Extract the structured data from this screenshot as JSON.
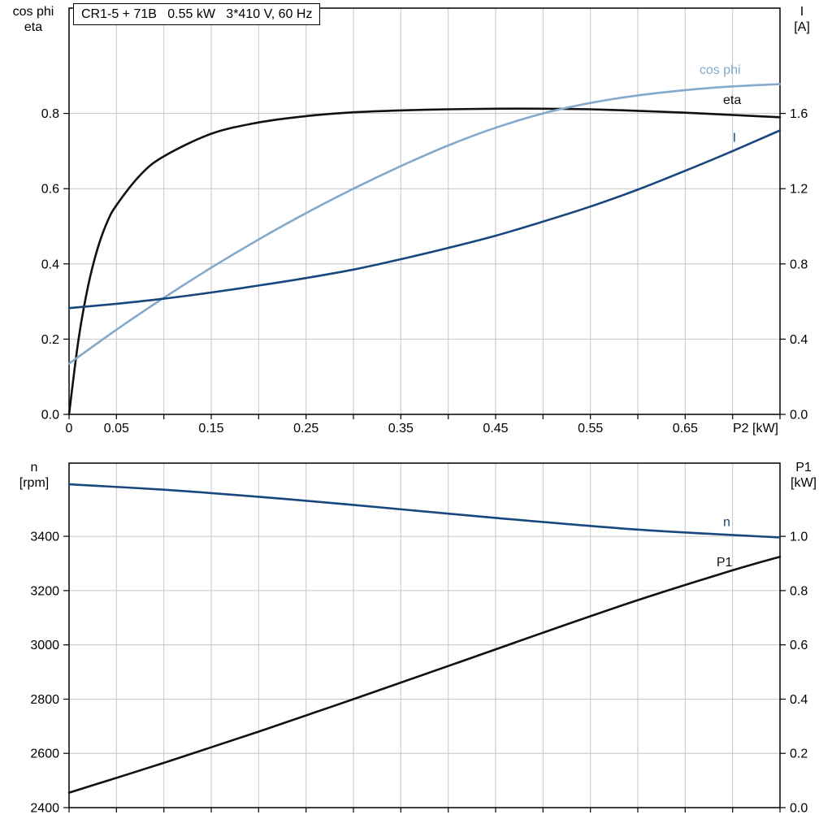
{
  "title_box": {
    "text": "CR1-5 + 71B   0.55 kW   3*410 V, 60 Hz"
  },
  "colors": {
    "black": "#111111",
    "dark_blue": "#17477e",
    "light_blue": "#83a9cc",
    "grid": "#c6c6c6",
    "axis": "#000000",
    "text": "#000000"
  },
  "chart_data": [
    {
      "type": "line",
      "name": "motor-electrical-chart",
      "title": "CR1-5 + 71B   0.55 kW   3*410 V, 60 Hz",
      "x_axis": {
        "label": "P2 [kW]",
        "range": [
          0,
          0.75
        ],
        "grid_step": 0.05,
        "ticks": [
          {
            "v": 0,
            "t": "0"
          },
          {
            "v": 0.05,
            "t": "0.05"
          },
          {
            "v": 0.15,
            "t": "0.15"
          },
          {
            "v": 0.25,
            "t": "0.25"
          },
          {
            "v": 0.35,
            "t": "0.35"
          },
          {
            "v": 0.45,
            "t": "0.45"
          },
          {
            "v": 0.55,
            "t": "0.55"
          },
          {
            "v": 0.65,
            "t": "0.65"
          }
        ]
      },
      "left_axis": {
        "title_lines": [
          "cos phi",
          "eta"
        ],
        "range": [
          0,
          1.08
        ],
        "grid": [
          0.2,
          0.4,
          0.6,
          0.8
        ],
        "ticks": [
          {
            "v": 0.0,
            "t": "0.0"
          },
          {
            "v": 0.2,
            "t": "0.2"
          },
          {
            "v": 0.4,
            "t": "0.4"
          },
          {
            "v": 0.6,
            "t": "0.6"
          },
          {
            "v": 0.8,
            "t": "0.8"
          }
        ]
      },
      "right_axis": {
        "title_lines": [
          "I",
          "[A]"
        ],
        "range": [
          0,
          2.16
        ],
        "ticks": [
          {
            "v": 0.0,
            "t": "0.0"
          },
          {
            "v": 0.4,
            "t": "0.4"
          },
          {
            "v": 0.8,
            "t": "0.8"
          },
          {
            "v": 1.2,
            "t": "1.2"
          },
          {
            "v": 1.6,
            "t": "1.6"
          }
        ]
      },
      "series": [
        {
          "name": "eta",
          "axis": "left",
          "color": "black",
          "label": {
            "text": "eta",
            "x": 0.69,
            "v": 0.825
          },
          "points": [
            [
              0,
              0
            ],
            [
              0.01,
              0.2
            ],
            [
              0.02,
              0.34
            ],
            [
              0.03,
              0.44
            ],
            [
              0.04,
              0.51
            ],
            [
              0.05,
              0.556
            ],
            [
              0.075,
              0.636
            ],
            [
              0.1,
              0.686
            ],
            [
              0.15,
              0.746
            ],
            [
              0.2,
              0.776
            ],
            [
              0.25,
              0.793
            ],
            [
              0.3,
              0.803
            ],
            [
              0.35,
              0.808
            ],
            [
              0.4,
              0.811
            ],
            [
              0.45,
              0.8125
            ],
            [
              0.5,
              0.8125
            ],
            [
              0.55,
              0.811
            ],
            [
              0.6,
              0.807
            ],
            [
              0.65,
              0.802
            ],
            [
              0.7,
              0.796
            ],
            [
              0.75,
              0.79
            ]
          ]
        },
        {
          "name": "cos-phi",
          "axis": "left",
          "color": "light_blue",
          "label": {
            "text": "cos phi",
            "x": 0.665,
            "v": 0.905
          },
          "points": [
            [
              0,
              0.135
            ],
            [
              0.05,
              0.225
            ],
            [
              0.1,
              0.31
            ],
            [
              0.15,
              0.39
            ],
            [
              0.2,
              0.465
            ],
            [
              0.25,
              0.535
            ],
            [
              0.3,
              0.6
            ],
            [
              0.35,
              0.66
            ],
            [
              0.4,
              0.715
            ],
            [
              0.45,
              0.762
            ],
            [
              0.5,
              0.8
            ],
            [
              0.55,
              0.828
            ],
            [
              0.6,
              0.848
            ],
            [
              0.65,
              0.862
            ],
            [
              0.7,
              0.872
            ],
            [
              0.75,
              0.878
            ]
          ]
        },
        {
          "name": "i",
          "axis": "right",
          "color": "dark_blue",
          "label": {
            "text": "I",
            "x": 0.7,
            "v": 1.45
          },
          "points": [
            [
              0,
              0.565
            ],
            [
              0.05,
              0.588
            ],
            [
              0.1,
              0.615
            ],
            [
              0.15,
              0.648
            ],
            [
              0.2,
              0.685
            ],
            [
              0.25,
              0.725
            ],
            [
              0.3,
              0.77
            ],
            [
              0.35,
              0.825
            ],
            [
              0.4,
              0.885
            ],
            [
              0.45,
              0.95
            ],
            [
              0.5,
              1.025
            ],
            [
              0.55,
              1.105
            ],
            [
              0.6,
              1.195
            ],
            [
              0.65,
              1.295
            ],
            [
              0.7,
              1.4
            ],
            [
              0.75,
              1.51
            ]
          ]
        }
      ]
    },
    {
      "type": "line",
      "name": "speed-power-chart",
      "x_axis": {
        "label": null,
        "range": [
          0,
          0.75
        ],
        "grid_step": 0.05,
        "ticks": []
      },
      "left_axis": {
        "title_lines": [
          "n",
          "[rpm]"
        ],
        "range": [
          2400,
          3670
        ],
        "grid": [
          2600,
          2800,
          3000,
          3200,
          3400
        ],
        "ticks": [
          {
            "v": 2400,
            "t": "2400"
          },
          {
            "v": 2600,
            "t": "2600"
          },
          {
            "v": 2800,
            "t": "2800"
          },
          {
            "v": 3000,
            "t": "3000"
          },
          {
            "v": 3200,
            "t": "3200"
          },
          {
            "v": 3400,
            "t": "3400"
          }
        ]
      },
      "right_axis": {
        "title_lines": [
          "P1",
          "[kW]"
        ],
        "range": [
          0,
          1.27
        ],
        "ticks": [
          {
            "v": 0.0,
            "t": "0.0"
          },
          {
            "v": 0.2,
            "t": "0.2"
          },
          {
            "v": 0.4,
            "t": "0.4"
          },
          {
            "v": 0.6,
            "t": "0.6"
          },
          {
            "v": 0.8,
            "t": "0.8"
          },
          {
            "v": 1.0,
            "t": "1.0"
          }
        ]
      },
      "series": [
        {
          "name": "n",
          "axis": "left",
          "color": "dark_blue",
          "label": {
            "text": "n",
            "x": 0.69,
            "v": 3438
          },
          "points": [
            [
              0,
              3592
            ],
            [
              0.1,
              3572
            ],
            [
              0.2,
              3546
            ],
            [
              0.3,
              3516
            ],
            [
              0.45,
              3468
            ],
            [
              0.6,
              3425
            ],
            [
              0.75,
              3396
            ]
          ]
        },
        {
          "name": "p1",
          "axis": "right",
          "color": "black",
          "label": {
            "text": "P1",
            "x": 0.683,
            "v": 0.89
          },
          "points": [
            [
              0,
              0.055
            ],
            [
              0.1,
              0.165
            ],
            [
              0.2,
              0.28
            ],
            [
              0.3,
              0.4
            ],
            [
              0.4,
              0.522
            ],
            [
              0.5,
              0.645
            ],
            [
              0.6,
              0.765
            ],
            [
              0.7,
              0.875
            ],
            [
              0.75,
              0.925
            ]
          ]
        }
      ]
    }
  ]
}
